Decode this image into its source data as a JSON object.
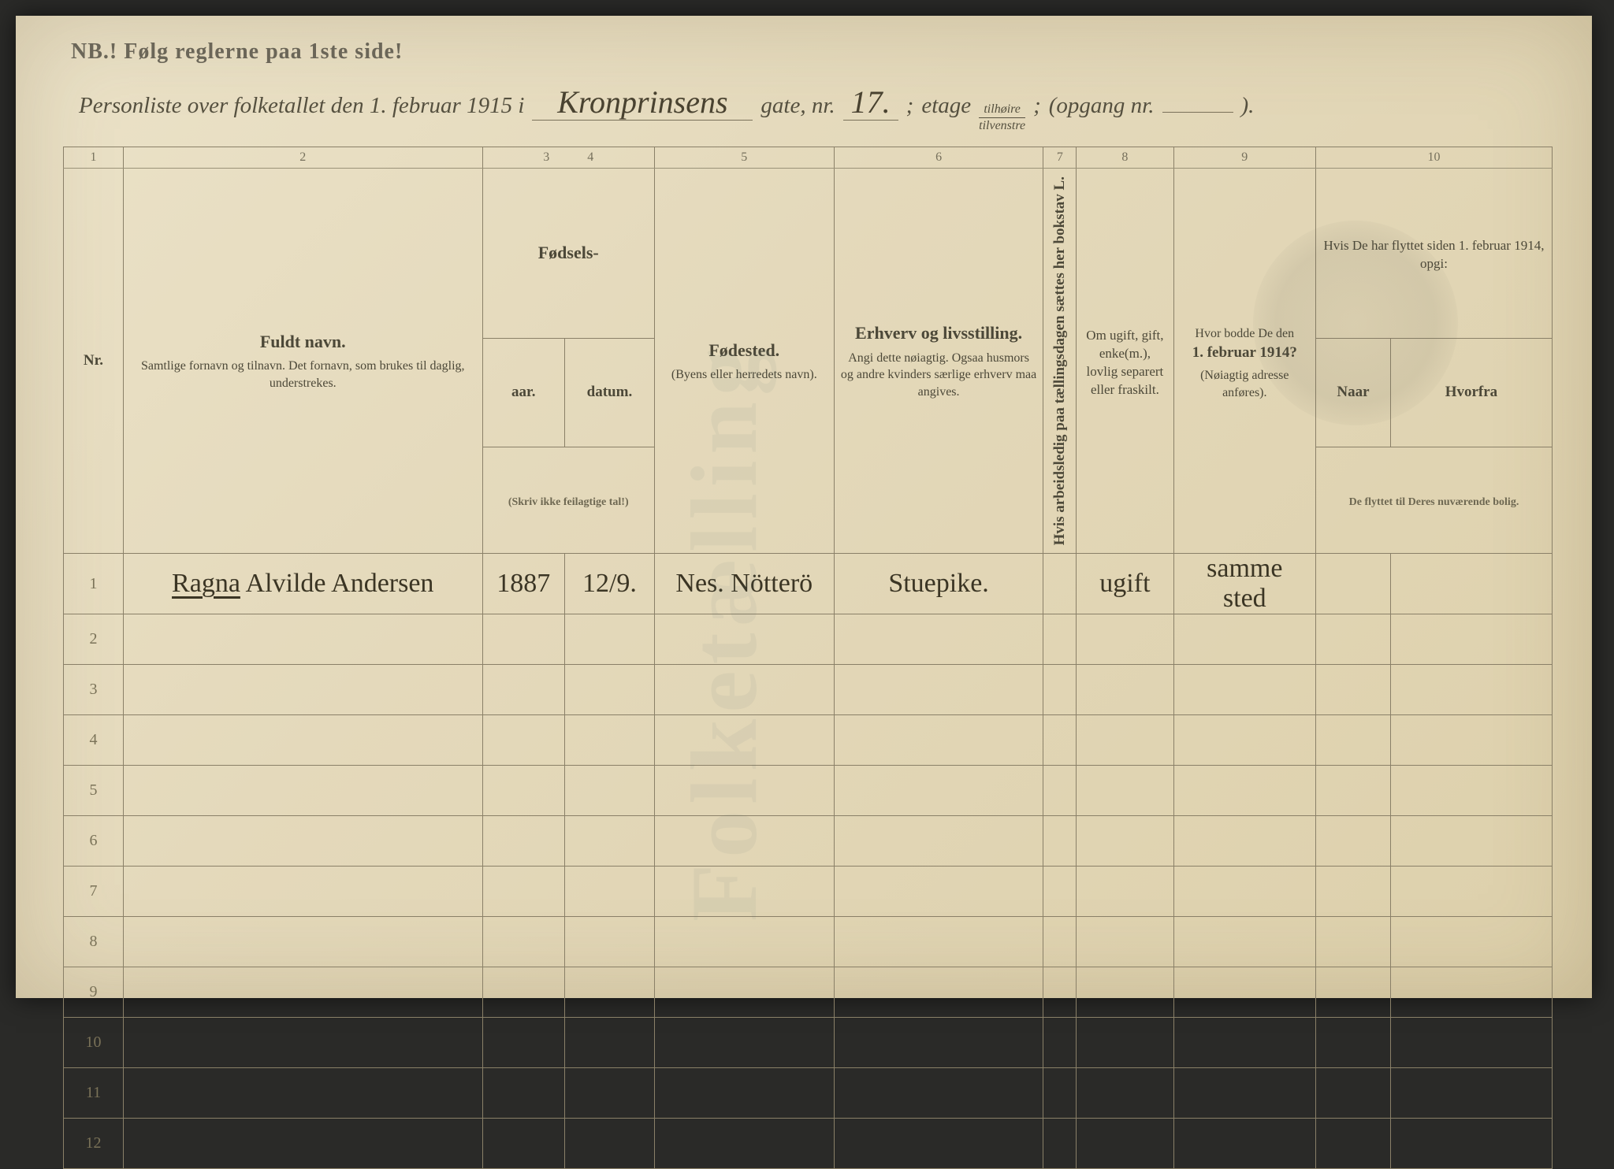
{
  "header": {
    "nb_line": "NB.!  Følg reglerne paa 1ste side!",
    "title_prefix": "Personliste over folketallet den 1. februar 1915 i",
    "street_name": "Kronprinsens",
    "gate_label": "gate, nr.",
    "gate_nr": "17.",
    "semicolon": ";",
    "etage_label": "etage",
    "frac_top": "tilhøire",
    "frac_bot": "tilvenstre",
    "opgang_label": "(opgang nr.",
    "opgang_nr": "",
    "closing": ")."
  },
  "colnums": [
    "1",
    "2",
    "3",
    "4",
    "5",
    "6",
    "7",
    "8",
    "9",
    "10"
  ],
  "columns": {
    "nr": "Nr.",
    "name_main": "Fuldt navn.",
    "name_sub": "Samtlige fornavn og tilnavn.   Det fornavn, som brukes til daglig, understrekes.",
    "birth_main": "Fødsels-",
    "birth_year": "aar.",
    "birth_date": "datum.",
    "birth_note": "(Skriv ikke feilagtige tal!)",
    "birthplace_main": "Fødested.",
    "birthplace_sub": "(Byens eller herredets navn).",
    "occ_main": "Erhverv og livsstilling.",
    "occ_sub": "Angi dette nøiagtig. Ogsaa husmors og andre kvinders særlige erhverv maa angives.",
    "col7_vert": "Hvis arbeidsledig paa tællingsdagen sættes her bokstav L.",
    "marital_main": "Om ugift, gift, enke(m.), lovlig separert eller fraskilt.",
    "prev_addr_main": "Hvor bodde De den",
    "prev_addr_bold": "1. februar 1914?",
    "prev_addr_sub": "(Nøiagtig adresse anføres).",
    "moved_main": "Hvis De har flyttet siden 1. februar 1914, opgi:",
    "moved_when": "Naar",
    "moved_from": "Hvorfra",
    "moved_sub": "De flyttet til Deres nuværende bolig."
  },
  "rows": [
    {
      "nr": "1",
      "name_first": "Ragna",
      "name_rest": "Alvilde Andersen",
      "year": "1887",
      "date": "12/9.",
      "birthplace": "Nes. Nötterö",
      "occupation": "Stuepike.",
      "col7": "",
      "marital": "ugift",
      "prev_addr": "samme sted",
      "moved_when": "",
      "moved_from": ""
    }
  ],
  "blank_row_numbers": [
    "2",
    "3",
    "4",
    "5",
    "6",
    "7",
    "8",
    "9",
    "10",
    "11",
    "12"
  ],
  "style": {
    "page_bg_from": "#ebe2c8",
    "page_bg_to": "#ddd0ab",
    "rule_color": "#8a8068",
    "print_color": "#4c4838",
    "ink_color": "#3b3524",
    "header_fontsize_pt": 22,
    "body_hand_fontsize_pt": 26,
    "table_width_pct": 100
  }
}
